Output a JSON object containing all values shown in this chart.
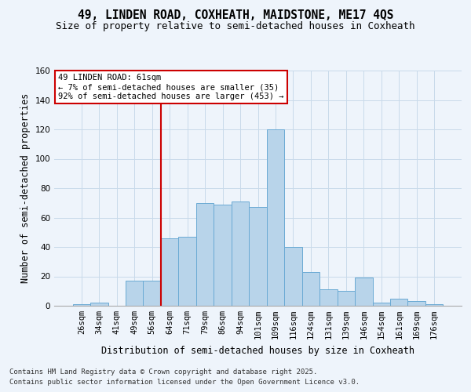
{
  "title1": "49, LINDEN ROAD, COXHEATH, MAIDSTONE, ME17 4QS",
  "title2": "Size of property relative to semi-detached houses in Coxheath",
  "xlabel": "Distribution of semi-detached houses by size in Coxheath",
  "ylabel": "Number of semi-detached properties",
  "categories": [
    "26sqm",
    "34sqm",
    "41sqm",
    "49sqm",
    "56sqm",
    "64sqm",
    "71sqm",
    "79sqm",
    "86sqm",
    "94sqm",
    "101sqm",
    "109sqm",
    "116sqm",
    "124sqm",
    "131sqm",
    "139sqm",
    "146sqm",
    "154sqm",
    "161sqm",
    "169sqm",
    "176sqm"
  ],
  "values": [
    1,
    2,
    0,
    17,
    17,
    46,
    47,
    70,
    69,
    71,
    67,
    120,
    40,
    23,
    11,
    10,
    19,
    2,
    5,
    3,
    1
  ],
  "bar_color": "#b8d4ea",
  "bar_edge_color": "#6aaad4",
  "grid_color": "#c8daea",
  "bg_color": "#eef4fb",
  "vline_color": "#cc0000",
  "vline_pos": 5.0,
  "annotation_title": "49 LINDEN ROAD: 61sqm",
  "annotation_line1": "← 7% of semi-detached houses are smaller (35)",
  "annotation_line2": "92% of semi-detached houses are larger (453) →",
  "annotation_box_facecolor": "white",
  "annotation_box_edgecolor": "#cc0000",
  "footnote1": "Contains HM Land Registry data © Crown copyright and database right 2025.",
  "footnote2": "Contains public sector information licensed under the Open Government Licence v3.0.",
  "ylim": [
    0,
    160
  ],
  "yticks": [
    0,
    20,
    40,
    60,
    80,
    100,
    120,
    140,
    160
  ],
  "title1_fontsize": 10.5,
  "title2_fontsize": 9,
  "axis_label_fontsize": 8.5,
  "tick_fontsize": 7.5,
  "annotation_fontsize": 7.5,
  "footnote_fontsize": 6.5
}
